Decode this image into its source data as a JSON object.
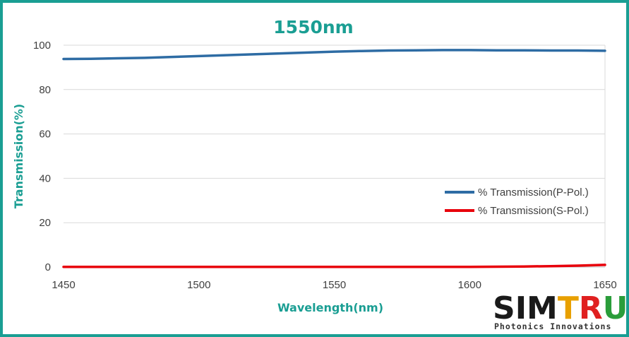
{
  "chart_data": {
    "type": "line",
    "title": "1550nm",
    "xlabel": "Wavelength(nm)",
    "ylabel": "Transmission(%)",
    "xlim": [
      1450,
      1650
    ],
    "ylim": [
      0,
      100
    ],
    "x_ticks": [
      "1450",
      "1500",
      "1550",
      "1600",
      "1650"
    ],
    "y_ticks": [
      "0",
      "20",
      "40",
      "60",
      "80",
      "100"
    ],
    "grid": "horizontal",
    "legend_position": "lower-right",
    "series": [
      {
        "name": "% Transmission(P-Pol.)",
        "color": "#2e6ca4",
        "x": [
          1450,
          1460,
          1470,
          1480,
          1490,
          1500,
          1510,
          1520,
          1530,
          1540,
          1550,
          1560,
          1570,
          1580,
          1590,
          1600,
          1610,
          1620,
          1630,
          1640,
          1650
        ],
        "y": [
          93.8,
          93.9,
          94.1,
          94.3,
          94.7,
          95.1,
          95.5,
          95.9,
          96.3,
          96.7,
          97.1,
          97.4,
          97.6,
          97.7,
          97.8,
          97.8,
          97.7,
          97.7,
          97.6,
          97.6,
          97.5
        ]
      },
      {
        "name": "% Transmission(S-Pol.)",
        "color": "#e8000b",
        "x": [
          1450,
          1475,
          1500,
          1525,
          1550,
          1575,
          1600,
          1610,
          1620,
          1630,
          1640,
          1650
        ],
        "y": [
          0.1,
          0.1,
          0.1,
          0.1,
          0.1,
          0.1,
          0.1,
          0.15,
          0.25,
          0.4,
          0.65,
          1.0
        ]
      }
    ]
  },
  "logo": {
    "text_a": "SIM",
    "text_b": "TRUM",
    "tagline": "Photonics Innovations",
    "colors": {
      "dark": "#1a1a1a",
      "t": "#e8a000",
      "r": "#e02020",
      "u": "#2a9d3a",
      "m": "#1f6fd6",
      "sim": "#1a1a1a"
    }
  },
  "colors": {
    "accent": "#1a9e93",
    "grid": "#d9d9d9",
    "axis": "#bfbfbf",
    "plot_bg": "#ffffff"
  }
}
